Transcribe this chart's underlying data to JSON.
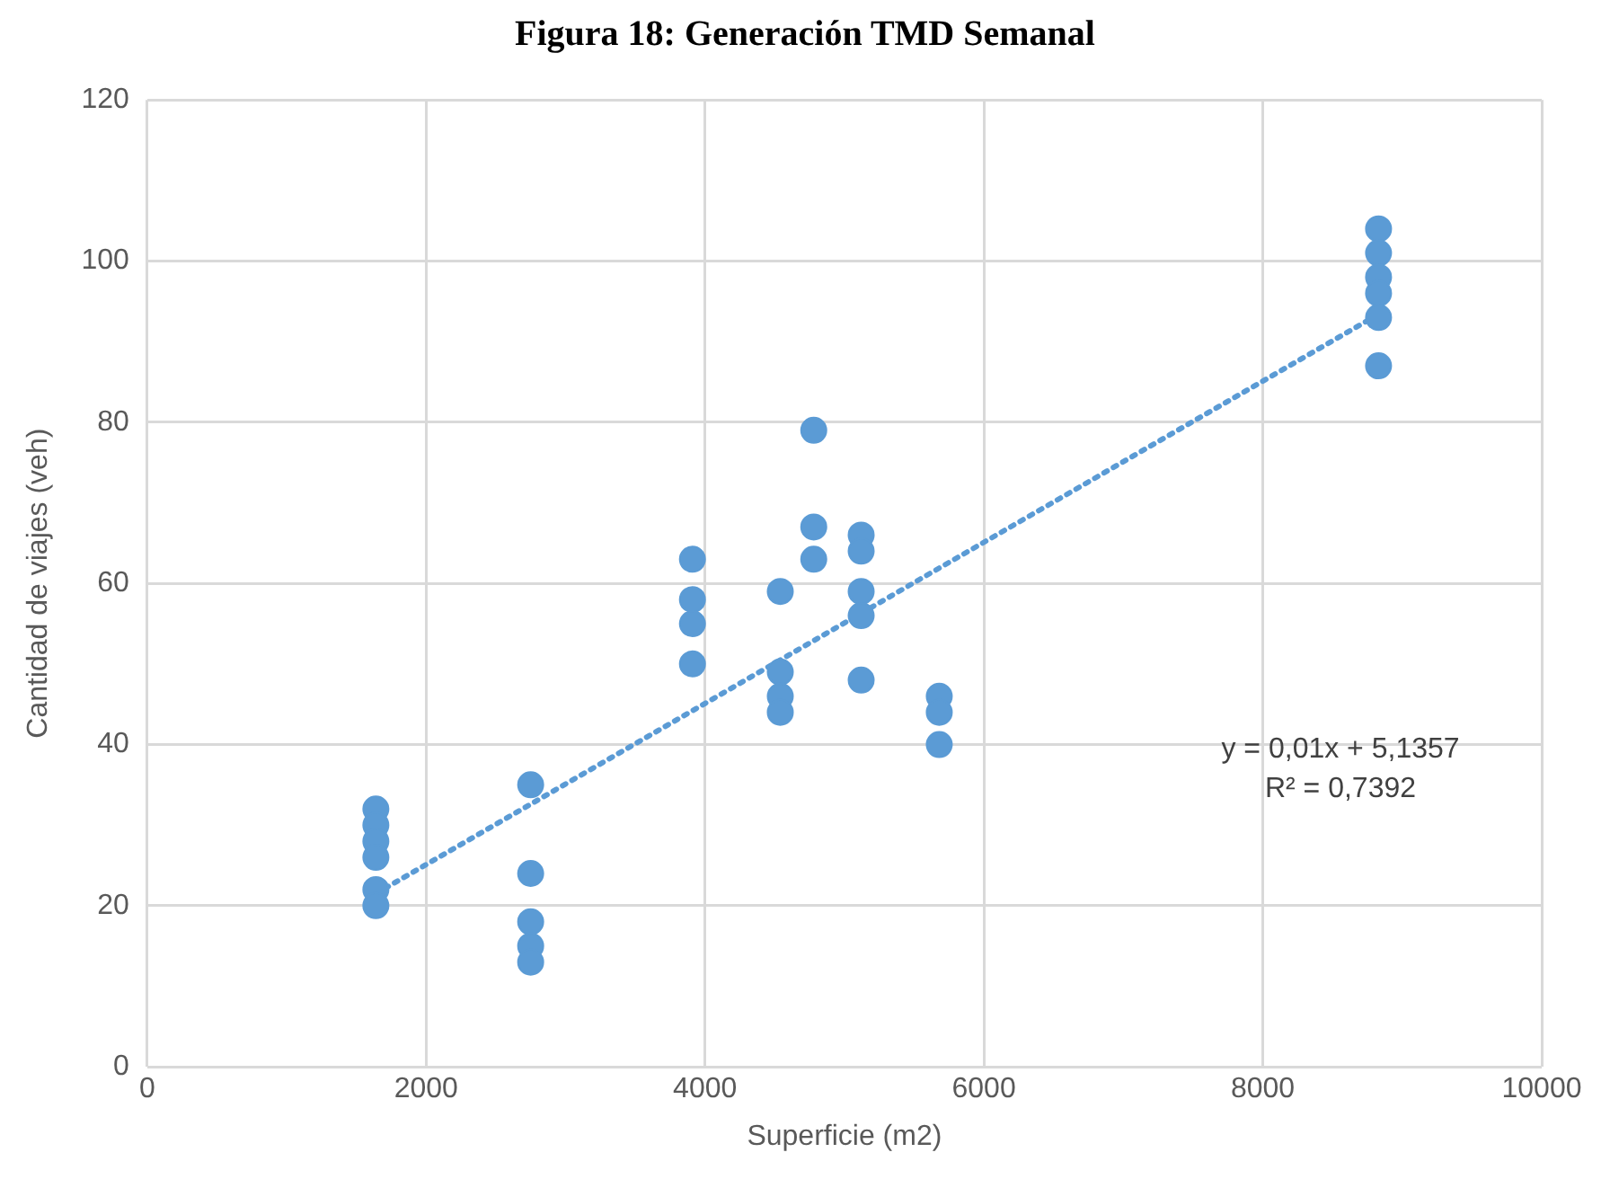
{
  "chart_data": {
    "type": "scatter",
    "title": "Figura 18: Generación TMD Semanal",
    "xlabel": "Superficie (m2)",
    "ylabel": "Cantidad de viajes (veh)",
    "series": [
      {
        "color": "#5b9bd5",
        "marker": "circle",
        "x": [
          1640,
          1640,
          1640,
          1640,
          1640,
          1640,
          2750,
          2750,
          2750,
          2750,
          2750,
          3910,
          3910,
          3910,
          3910,
          4540,
          4540,
          4540,
          4540,
          4780,
          4780,
          4780,
          5120,
          5120,
          5120,
          5120,
          5120,
          5680,
          5680,
          5680,
          8830,
          8830,
          8830,
          8830,
          8830,
          8830
        ],
        "values": [
          32,
          30,
          28,
          26,
          22,
          20,
          35,
          24,
          18,
          15,
          13,
          63,
          58,
          55,
          50,
          59,
          49,
          46,
          44,
          79,
          67,
          63,
          66,
          64,
          59,
          56,
          48,
          46,
          44,
          40,
          104,
          101,
          98,
          96,
          93,
          87
        ]
      },
      {
        "type": "line",
        "color": "#5b9bd5",
        "line_style": "dotted",
        "x": [
          1640,
          8830
        ],
        "values": [
          21.5,
          93.4
        ]
      }
    ],
    "xlim": [
      0,
      10000
    ],
    "xticks": [
      0,
      2000,
      4000,
      6000,
      8000,
      10000
    ],
    "ylim": [
      0,
      120
    ],
    "yticks": [
      0,
      20,
      40,
      60,
      80,
      100,
      120
    ],
    "grid": true,
    "legend": false,
    "annotations": [
      "y = 0,01x + 5,1357",
      "R² = 0,7392"
    ]
  }
}
